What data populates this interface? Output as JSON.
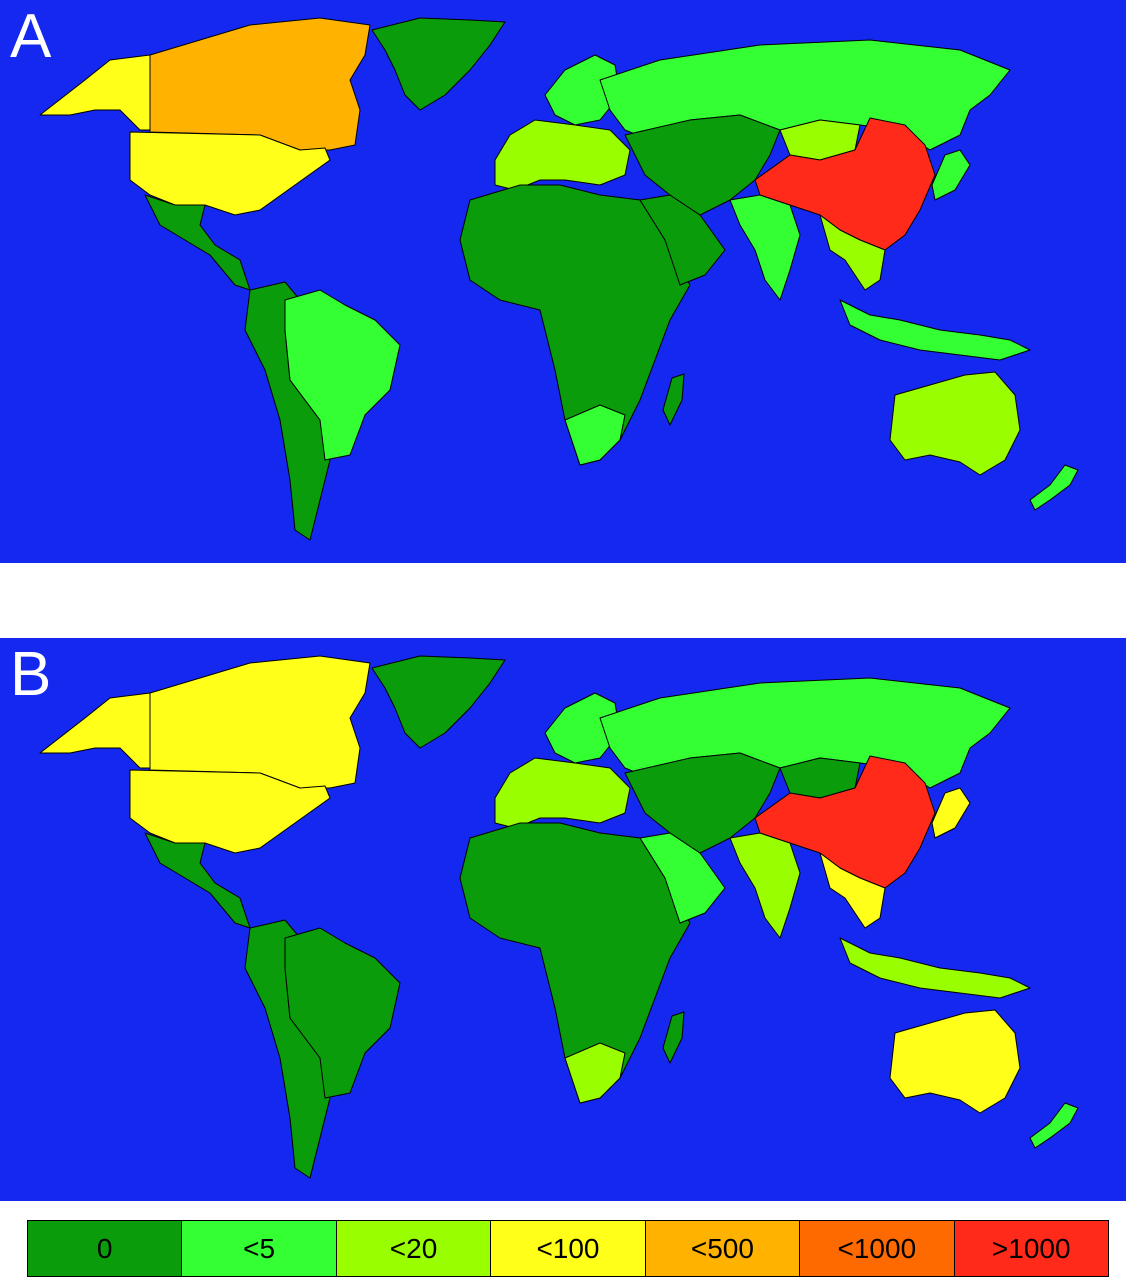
{
  "panels": [
    {
      "label": "A",
      "regions": {
        "greenland": "0",
        "north-america-canada": "<500",
        "alaska": "<100",
        "usa": "<100",
        "mexico-central-america": "0",
        "south-america-west": "0",
        "brazil": "<5",
        "europe-north": "<5",
        "europe-west": "<20",
        "africa": "0",
        "south-africa": "<5",
        "madagascar": "0",
        "arabia": "0",
        "russia": "<5",
        "central-asia": "0",
        "mongolia": "<20",
        "china": ">1000",
        "india": "<5",
        "southeast-asia": "<20",
        "japan": "<5",
        "indonesia": "<5",
        "australia": "<20",
        "new-zealand": "<5"
      }
    },
    {
      "label": "B",
      "regions": {
        "greenland": "0",
        "north-america-canada": "<100",
        "alaska": "<100",
        "usa": "<100",
        "mexico-central-america": "0",
        "south-america-west": "0",
        "brazil": "0",
        "europe-north": "<5",
        "europe-west": "<20",
        "africa": "0",
        "south-africa": "<20",
        "madagascar": "0",
        "arabia": "<5",
        "russia": "<5",
        "central-asia": "0",
        "mongolia": "0",
        "china": ">1000",
        "india": "<20",
        "southeast-asia": "<100",
        "japan": "<100",
        "indonesia": "<20",
        "australia": "<100",
        "new-zealand": "<5"
      }
    }
  ],
  "legend": [
    {
      "label": "0",
      "color": "#0a9c0a"
    },
    {
      "label": "<5",
      "color": "#33ff33"
    },
    {
      "label": "<20",
      "color": "#99ff00"
    },
    {
      "label": "<100",
      "color": "#ffff1a"
    },
    {
      "label": "<500",
      "color": "#ffb300"
    },
    {
      "label": "<1000",
      "color": "#ff6a00"
    },
    {
      "label": ">1000",
      "color": "#ff2a1a"
    }
  ],
  "ocean_color": "#1428f0"
}
